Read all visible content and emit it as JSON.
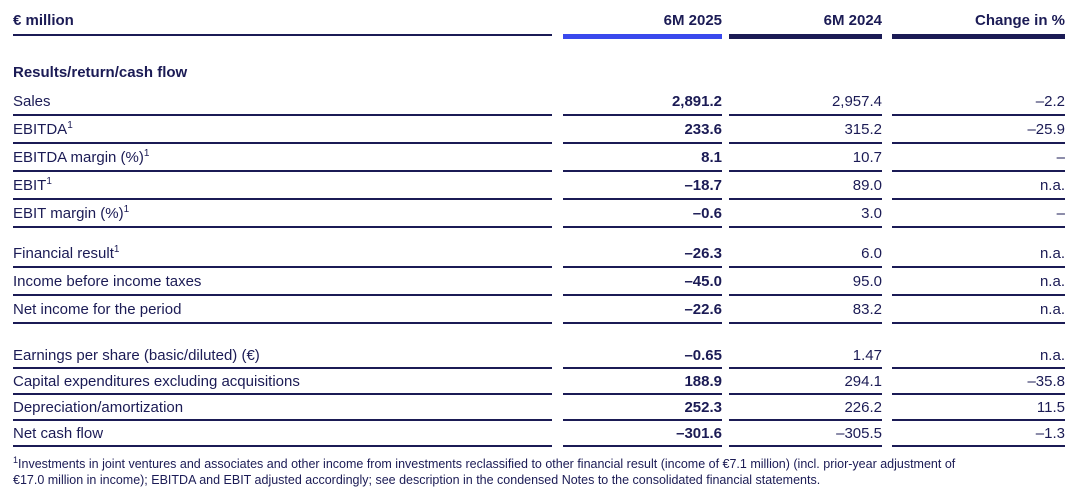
{
  "document": {
    "unit_label": "€ million",
    "columns": {
      "c2025": "6M 2025",
      "c2024": "6M 2024",
      "change": "Change in %"
    },
    "section_title": "Results/return/cash flow"
  },
  "table": {
    "rows": [
      {
        "label": "Sales",
        "sup": "",
        "v2025": "2,891.2",
        "v2024": "2,957.4",
        "change": "–2.2"
      },
      {
        "label": "EBITDA",
        "sup": "1",
        "v2025": "233.6",
        "v2024": "315.2",
        "change": "–25.9"
      },
      {
        "label": "EBITDA margin (%)",
        "sup": "1",
        "v2025": "8.1",
        "v2024": "10.7",
        "change": "–"
      },
      {
        "label": "EBIT",
        "sup": "1",
        "v2025": "–18.7",
        "v2024": "89.0",
        "change": "n.a."
      },
      {
        "label": "EBIT margin (%)",
        "sup": "1",
        "v2025": "–0.6",
        "v2024": "3.0",
        "change": "–"
      },
      {
        "label": "Financial result",
        "sup": "1",
        "v2025": "–26.3",
        "v2024": "6.0",
        "change": "n.a."
      },
      {
        "label": "Income before income taxes",
        "sup": "",
        "v2025": "–45.0",
        "v2024": "95.0",
        "change": "n.a."
      },
      {
        "label": "Net income for the period",
        "sup": "",
        "v2025": "–22.6",
        "v2024": "83.2",
        "change": "n.a."
      },
      {
        "label": "Earnings per share (basic/diluted) (€)",
        "sup": "",
        "v2025": "–0.65",
        "v2024": "1.47",
        "change": "n.a."
      },
      {
        "label": "Capital expenditures excluding acquisitions",
        "sup": "",
        "v2025": "188.9",
        "v2024": "294.1",
        "change": "–35.8"
      },
      {
        "label": "Depreciation/amortization",
        "sup": "",
        "v2025": "252.3",
        "v2024": "226.2",
        "change": "11.5"
      },
      {
        "label": "Net cash flow",
        "sup": "",
        "v2025": "–301.6",
        "v2024": "–305.5",
        "change": "–1.3"
      }
    ]
  },
  "footnote": {
    "sup": "1",
    "lines": [
      "Investments in joint ventures and associates and other income from investments reclassified to other financial result (income of €7.1 million) (incl. prior-year adjustment of",
      "€17.0 million in income); EBITDA and EBIT adjusted accordingly; see description in the condensed Notes to the consolidated financial statements."
    ]
  },
  "colors": {
    "navy_text_and_rules": "#1b1b55",
    "accent_blue_bar": "#3a49ed"
  }
}
